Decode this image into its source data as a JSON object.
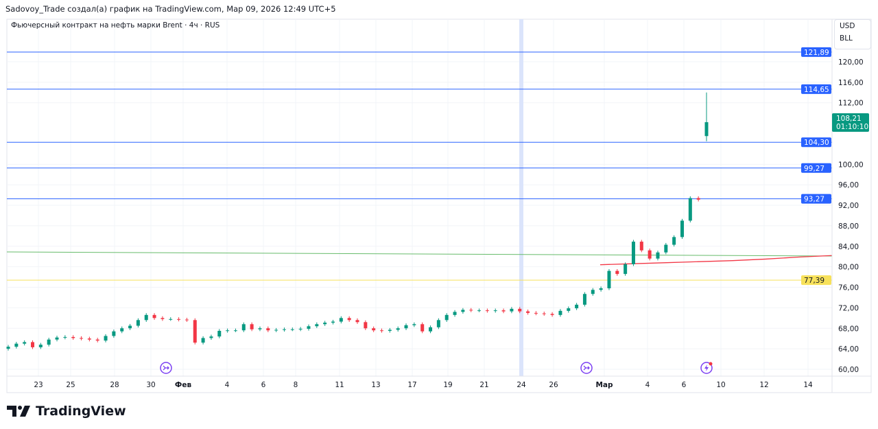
{
  "header": {
    "attribution": "Sadovoy_Trade создал(а) график на TradingView.com, Мар 09, 2026 12:49 UTC+5"
  },
  "legend": {
    "symbol_title": "Фьючерсный контракт на нефть марки Brent · 4ч · RUS"
  },
  "units": {
    "currency": "USD",
    "unit": "BLL"
  },
  "logo": {
    "text": "TradingView"
  },
  "colors": {
    "up": "#089981",
    "down": "#f23645",
    "hline": "#2962ff",
    "yellow": "#f7e15a",
    "green_line": "#66bb6a",
    "ma": "#f23645",
    "event": "#7b3ff2"
  },
  "chart_data": {
    "type": "candlestick",
    "title": "Фьючерсный контракт на нефть марки Brent · 4ч · RUS",
    "ylim": [
      58,
      124
    ],
    "yticks": [
      "60,00",
      "64,00",
      "68,00",
      "72,00",
      "76,00",
      "80,00",
      "84,00",
      "88,00",
      "92,00",
      "96,00",
      "100,00",
      "112,00",
      "116,00",
      "120,00"
    ],
    "ytick_values": [
      60,
      64,
      68,
      72,
      76,
      80,
      84,
      88,
      92,
      96,
      100,
      112,
      116,
      120
    ],
    "xticks": [
      "23",
      "25",
      "28",
      "30",
      "Фев",
      "4",
      "6",
      "8",
      "11",
      "13",
      "17",
      "19",
      "21",
      "24",
      "26",
      "Мар",
      "4",
      "6",
      "10",
      "12",
      "14"
    ],
    "closes": [
      64.4,
      65.0,
      65.3,
      64.3,
      64.8,
      65.8,
      66.2,
      66.3,
      66.1,
      66.0,
      65.8,
      65.6,
      66.5,
      67.4,
      68.0,
      68.5,
      69.6,
      70.6,
      70.0,
      69.8,
      69.8,
      69.7,
      69.6,
      65.2,
      66.1,
      66.4,
      67.5,
      67.6,
      67.6,
      68.8,
      67.8,
      68.0,
      67.6,
      67.7,
      67.8,
      67.8,
      67.9,
      68.4,
      68.8,
      69.1,
      69.3,
      70.0,
      69.6,
      69.2,
      68.0,
      67.6,
      67.5,
      67.7,
      68.0,
      68.6,
      68.8,
      67.4,
      68.2,
      69.6,
      70.6,
      71.2,
      71.6,
      71.5,
      71.5,
      71.4,
      71.5,
      71.3,
      71.8,
      71.3,
      71.0,
      70.9,
      70.8,
      70.6,
      71.4,
      71.9,
      72.6,
      74.7,
      75.5,
      75.8,
      79.2,
      78.6,
      80.5,
      84.9,
      83.2,
      81.6,
      82.8,
      84.3,
      85.8,
      89.0,
      93.4,
      93.1
    ],
    "first_open": 64.0,
    "last_candle": {
      "open": 105.5,
      "high": 114.0,
      "low": 104.5,
      "close": 108.21
    },
    "horizontal_levels": [
      {
        "value": 121.89,
        "label": "121,89",
        "color": "#2962ff"
      },
      {
        "value": 114.65,
        "label": "114,65",
        "color": "#2962ff"
      },
      {
        "value": 104.3,
        "label": "104,30",
        "color": "#2962ff"
      },
      {
        "value": 99.27,
        "label": "99,27",
        "color": "#2962ff"
      },
      {
        "value": 93.27,
        "label": "93,27",
        "color": "#2962ff"
      },
      {
        "value": 77.39,
        "label": "77,39",
        "color": "#f7e15a"
      }
    ],
    "trend_line": {
      "start": 82.9,
      "end": 82.1
    },
    "moving_average": [
      80.4,
      80.6,
      80.8,
      81.0,
      81.2,
      81.5,
      81.9,
      82.2
    ],
    "current_price": {
      "label": "108,21",
      "countdown": "01:10:10"
    }
  }
}
